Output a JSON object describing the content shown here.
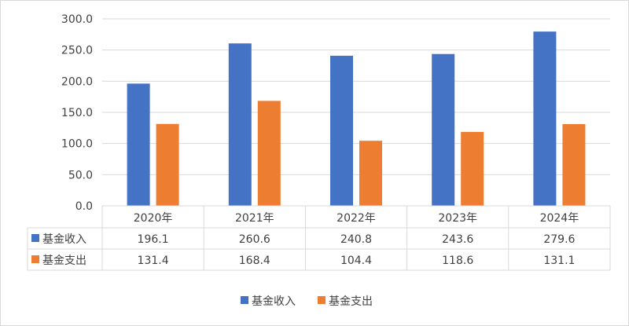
{
  "chart_data": {
    "type": "bar",
    "categories": [
      "2020年",
      "2021年",
      "2022年",
      "2023年",
      "2024年"
    ],
    "series": [
      {
        "name": "基金收入",
        "values": [
          196.1,
          260.6,
          240.8,
          243.6,
          279.6
        ],
        "color": "#4472C4",
        "labels": [
          "196.1",
          "260.6",
          "240.8",
          "243.6",
          "279.6"
        ]
      },
      {
        "name": "基金支出",
        "values": [
          131.4,
          168.4,
          104.4,
          118.6,
          131.1
        ],
        "color": "#ED7D31",
        "labels": [
          "131.4",
          "168.4",
          "104.4",
          "118.6",
          "131.1"
        ]
      }
    ],
    "ylim": [
      0,
      300
    ],
    "yticks": [
      "0.0",
      "50.0",
      "100.0",
      "150.0",
      "200.0",
      "250.0",
      "300.0"
    ],
    "grid": true,
    "data_table": true,
    "legend": "bottom"
  }
}
